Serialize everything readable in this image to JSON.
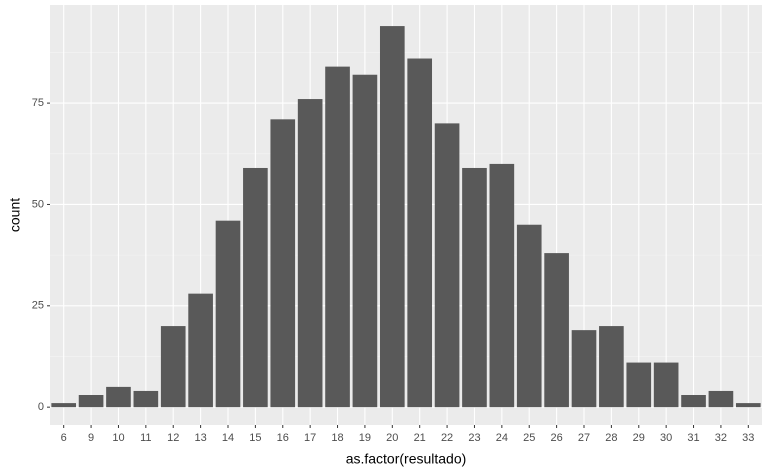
{
  "chart_data": {
    "type": "bar",
    "x_label": "as.factor(resultado)",
    "y_label": "count",
    "categories": [
      "6",
      "9",
      "10",
      "11",
      "12",
      "13",
      "14",
      "15",
      "16",
      "17",
      "18",
      "19",
      "20",
      "21",
      "22",
      "23",
      "24",
      "25",
      "26",
      "27",
      "28",
      "29",
      "30",
      "31",
      "32",
      "33"
    ],
    "values": [
      1,
      3,
      5,
      4,
      20,
      28,
      46,
      59,
      71,
      76,
      84,
      82,
      94,
      86,
      70,
      59,
      60,
      45,
      38,
      19,
      20,
      11,
      11,
      3,
      4,
      1
    ],
    "color": "#595959",
    "ylim": [
      -4.4,
      99.2
    ],
    "yticks": [
      0,
      25,
      50,
      75
    ],
    "grid": true
  }
}
